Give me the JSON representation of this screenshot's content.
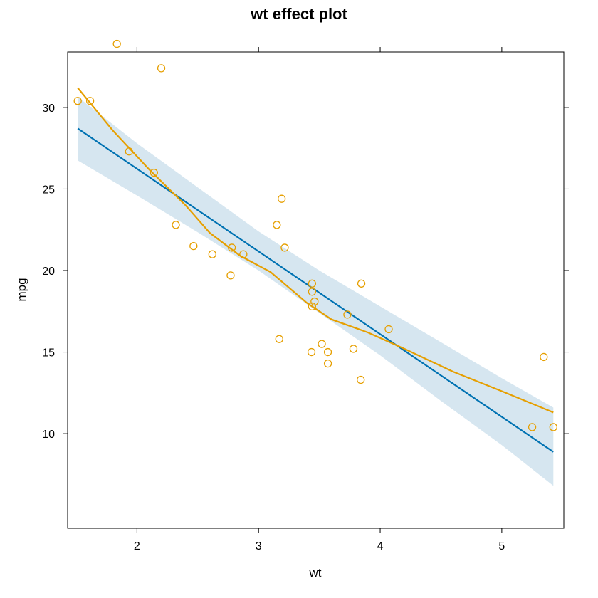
{
  "chart_data": {
    "type": "scatter",
    "title": "wt effect plot",
    "xlabel": "wt",
    "ylabel": "mpg",
    "xlim": [
      1.43,
      5.51
    ],
    "ylim": [
      4.2,
      33.4
    ],
    "x_ticks": [
      2,
      3,
      4,
      5
    ],
    "y_ticks": [
      10,
      15,
      20,
      25,
      30
    ],
    "grid": false,
    "colors": {
      "points": "#E69F00",
      "smooth": "#E69F00",
      "fit": "#0072B2",
      "band": "#D6E6F0",
      "frame": "#000000"
    },
    "points": [
      {
        "x": 1.513,
        "y": 30.4
      },
      {
        "x": 1.615,
        "y": 30.4
      },
      {
        "x": 1.835,
        "y": 33.9
      },
      {
        "x": 1.935,
        "y": 27.3
      },
      {
        "x": 2.14,
        "y": 26.0
      },
      {
        "x": 2.2,
        "y": 32.4
      },
      {
        "x": 2.32,
        "y": 22.8
      },
      {
        "x": 2.465,
        "y": 21.5
      },
      {
        "x": 2.62,
        "y": 21.0
      },
      {
        "x": 2.77,
        "y": 19.7
      },
      {
        "x": 2.78,
        "y": 21.4
      },
      {
        "x": 2.875,
        "y": 21.0
      },
      {
        "x": 3.15,
        "y": 22.8
      },
      {
        "x": 3.17,
        "y": 15.8
      },
      {
        "x": 3.19,
        "y": 24.4
      },
      {
        "x": 3.215,
        "y": 21.4
      },
      {
        "x": 3.435,
        "y": 15.0
      },
      {
        "x": 3.44,
        "y": 18.7
      },
      {
        "x": 3.44,
        "y": 19.2
      },
      {
        "x": 3.44,
        "y": 17.8
      },
      {
        "x": 3.46,
        "y": 18.1
      },
      {
        "x": 3.52,
        "y": 15.5
      },
      {
        "x": 3.57,
        "y": 14.3
      },
      {
        "x": 3.57,
        "y": 15.0
      },
      {
        "x": 3.73,
        "y": 17.3
      },
      {
        "x": 3.78,
        "y": 15.2
      },
      {
        "x": 3.84,
        "y": 13.3
      },
      {
        "x": 3.845,
        "y": 19.2
      },
      {
        "x": 4.07,
        "y": 16.4
      },
      {
        "x": 5.25,
        "y": 10.4
      },
      {
        "x": 5.345,
        "y": 14.7
      },
      {
        "x": 5.424,
        "y": 10.4
      }
    ],
    "fit_line": [
      {
        "x": 1.513,
        "y": 28.71
      },
      {
        "x": 5.424,
        "y": 8.88
      }
    ],
    "confidence_band": {
      "x": [
        1.513,
        2.0,
        2.5,
        3.0,
        3.5,
        4.0,
        4.5,
        5.0,
        5.424
      ],
      "lower": [
        26.75,
        24.6,
        22.35,
        20.0,
        17.4,
        14.8,
        12.0,
        9.3,
        6.8
      ],
      "upper": [
        30.65,
        27.8,
        25.1,
        22.4,
        20.0,
        17.8,
        15.6,
        13.4,
        11.6
      ]
    },
    "smooth_line": [
      {
        "x": 1.513,
        "y": 31.2
      },
      {
        "x": 1.8,
        "y": 28.6
      },
      {
        "x": 2.1,
        "y": 26.2
      },
      {
        "x": 2.4,
        "y": 24.0
      },
      {
        "x": 2.6,
        "y": 22.3
      },
      {
        "x": 2.85,
        "y": 20.9
      },
      {
        "x": 3.1,
        "y": 19.9
      },
      {
        "x": 3.4,
        "y": 18.0
      },
      {
        "x": 3.6,
        "y": 17.0
      },
      {
        "x": 3.9,
        "y": 16.2
      },
      {
        "x": 4.2,
        "y": 15.2
      },
      {
        "x": 4.6,
        "y": 13.8
      },
      {
        "x": 5.0,
        "y": 12.6
      },
      {
        "x": 5.424,
        "y": 11.3
      }
    ]
  }
}
